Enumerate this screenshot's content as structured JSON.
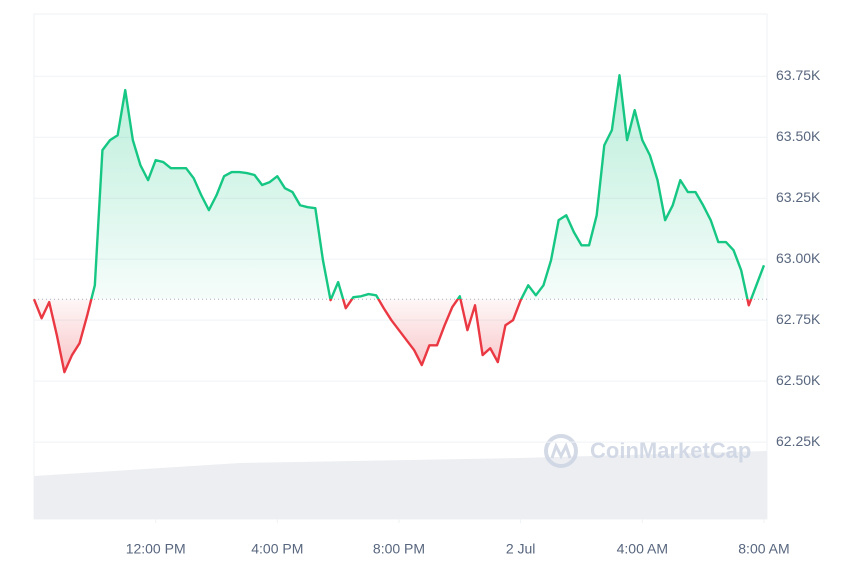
{
  "chart_data": {
    "type": "line",
    "baseline": 62836,
    "up_color": "#16c784",
    "down_color": "#ea3943",
    "x": [
      8,
      8.25,
      8.5,
      8.75,
      9,
      9.25,
      9.5,
      9.75,
      10,
      10.25,
      10.5,
      10.75,
      11,
      11.25,
      11.5,
      11.75,
      12,
      12.25,
      12.5,
      12.75,
      13,
      13.25,
      13.5,
      13.75,
      14,
      14.25,
      14.5,
      14.75,
      15,
      15.25,
      15.5,
      15.75,
      16,
      16.25,
      16.5,
      16.75,
      17,
      17.25,
      17.5,
      17.75,
      18,
      18.25,
      18.5,
      18.75,
      19,
      19.25,
      19.5,
      19.75,
      20,
      20.25,
      20.5,
      20.75,
      21,
      21.25,
      21.5,
      21.75,
      22,
      22.25,
      22.5,
      22.75,
      23,
      23.25,
      23.5,
      23.75,
      24,
      24.25,
      24.5,
      24.75,
      25,
      25.25,
      25.5,
      25.75,
      26,
      26.25,
      26.5,
      26.75,
      27,
      27.25,
      27.5,
      27.75,
      28,
      28.25,
      28.5,
      28.75,
      29,
      29.25,
      29.5,
      29.75,
      30,
      30.25,
      30.5,
      30.75,
      31,
      31.25,
      31.5,
      31.75,
      32
    ],
    "values": [
      62836,
      62758,
      62824,
      62689,
      62537,
      62607,
      62656,
      62770,
      62893,
      63447,
      63488,
      63508,
      63693,
      63488,
      63385,
      63324,
      63406,
      63398,
      63373,
      63373,
      63373,
      63332,
      63262,
      63201,
      63262,
      63340,
      63357,
      63357,
      63353,
      63345,
      63304,
      63316,
      63340,
      63291,
      63275,
      63221,
      63213,
      63209,
      62996,
      62832,
      62906,
      62799,
      62844,
      62848,
      62857,
      62852,
      62799,
      62750,
      62709,
      62668,
      62627,
      62566,
      62647,
      62647,
      62729,
      62803,
      62848,
      62709,
      62811,
      62607,
      62635,
      62578,
      62729,
      62750,
      62832,
      62893,
      62852,
      62893,
      62996,
      63160,
      63180,
      63111,
      63057,
      63057,
      63180,
      63467,
      63529,
      63754,
      63488,
      63611,
      63488,
      63426,
      63324,
      63160,
      63221,
      63324,
      63275,
      63275,
      63221,
      63160,
      63070,
      63070,
      63037,
      62955,
      62811,
      62893,
      62975
    ],
    "xlim": [
      8,
      32.1
    ],
    "xticks": [
      {
        "value": 12,
        "label": "12:00 PM"
      },
      {
        "value": 16,
        "label": "4:00 PM"
      },
      {
        "value": 20,
        "label": "8:00 PM"
      },
      {
        "value": 24,
        "label": "2 Jul"
      },
      {
        "value": 28,
        "label": "4:00 AM"
      },
      {
        "value": 32,
        "label": "8:00 AM"
      }
    ],
    "ylim": [
      61935,
      64005
    ],
    "yticks": [
      {
        "value": 62250,
        "label": "62.25K"
      },
      {
        "value": 62500,
        "label": "62.50K"
      },
      {
        "value": 62750,
        "label": "62.75K"
      },
      {
        "value": 63000,
        "label": "63.00K"
      },
      {
        "value": 63250,
        "label": "63.25K"
      },
      {
        "value": 63500,
        "label": "63.50K"
      },
      {
        "value": 63750,
        "label": "63.75K"
      }
    ],
    "grid": true,
    "watermark": "CoinMarketCap"
  }
}
